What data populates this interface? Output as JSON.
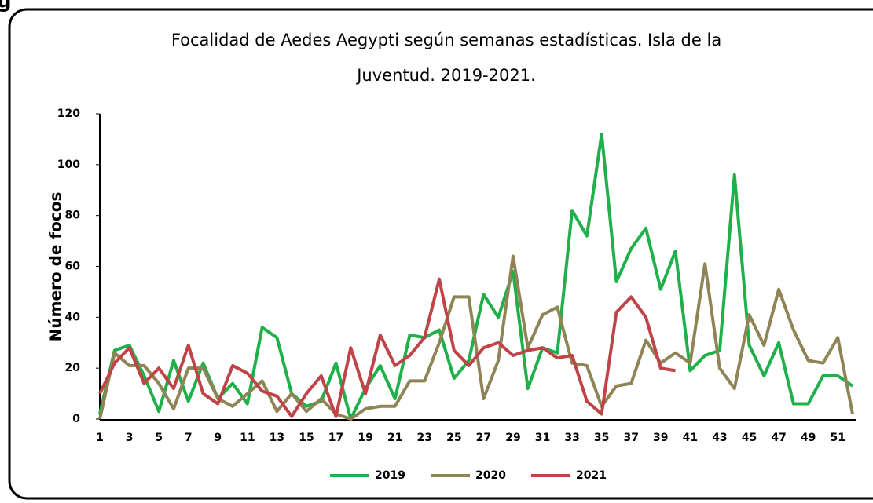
{
  "fragment": "g",
  "chart_data": {
    "type": "line",
    "title": [
      "Focalidad de Aedes Aegypti según semanas estadísticas. Isla de la",
      "Juventud. 2019-2021."
    ],
    "y_label": "Número de focos",
    "categories": [
      "1",
      null,
      "3",
      null,
      "5",
      null,
      "7",
      null,
      "9",
      null,
      "11",
      null,
      "13",
      null,
      "15",
      null,
      "17",
      null,
      "19",
      null,
      "21",
      null,
      "23",
      null,
      "25",
      null,
      "27",
      null,
      "29",
      null,
      "31",
      null,
      "33",
      null,
      "35",
      null,
      "37",
      null,
      "39",
      null,
      "41",
      null,
      "43",
      null,
      "45",
      null,
      "47",
      null,
      "49",
      null,
      "51",
      null
    ],
    "ylim": [
      0,
      120
    ],
    "yticks": [
      0,
      20,
      40,
      60,
      80,
      100,
      120
    ],
    "grid": false,
    "legend": "bottom",
    "series": [
      {
        "name": "2019",
        "color": "#1fb04a",
        "values": [
          2,
          27,
          29,
          17,
          3,
          23,
          7,
          22,
          8,
          14,
          6,
          36,
          32,
          10,
          5,
          7,
          22,
          0,
          12,
          21,
          8,
          33,
          32,
          35,
          16,
          23,
          49,
          40,
          58,
          12,
          28,
          26,
          82,
          72,
          112,
          54,
          67,
          75,
          51,
          66,
          19,
          25,
          27,
          96,
          29,
          17,
          30,
          6,
          6,
          17,
          17,
          13
        ]
      },
      {
        "name": "2020",
        "color": "#8f8456",
        "values": [
          0,
          26,
          21,
          21,
          14,
          4,
          20,
          20,
          8,
          5,
          10,
          15,
          3,
          10,
          3,
          8,
          2,
          0,
          4,
          5,
          5,
          15,
          15,
          30,
          48,
          48,
          8,
          23,
          64,
          28,
          41,
          44,
          22,
          21,
          5,
          13,
          14,
          31,
          22,
          26,
          22,
          61,
          20,
          12,
          41,
          29,
          51,
          35,
          23,
          22,
          32,
          2
        ]
      },
      {
        "name": "2021",
        "color": "#bf4347",
        "values": [
          10,
          22,
          28,
          14,
          20,
          12,
          29,
          10,
          6,
          21,
          18,
          11,
          9,
          1,
          10,
          17,
          1,
          28,
          10,
          33,
          21,
          25,
          32,
          55,
          27,
          21,
          28,
          30,
          25,
          27,
          28,
          24,
          25,
          7,
          2,
          42,
          48,
          40,
          20,
          19,
          null,
          null,
          null,
          null,
          null,
          null,
          null,
          null,
          null,
          null,
          null,
          null
        ]
      }
    ]
  }
}
